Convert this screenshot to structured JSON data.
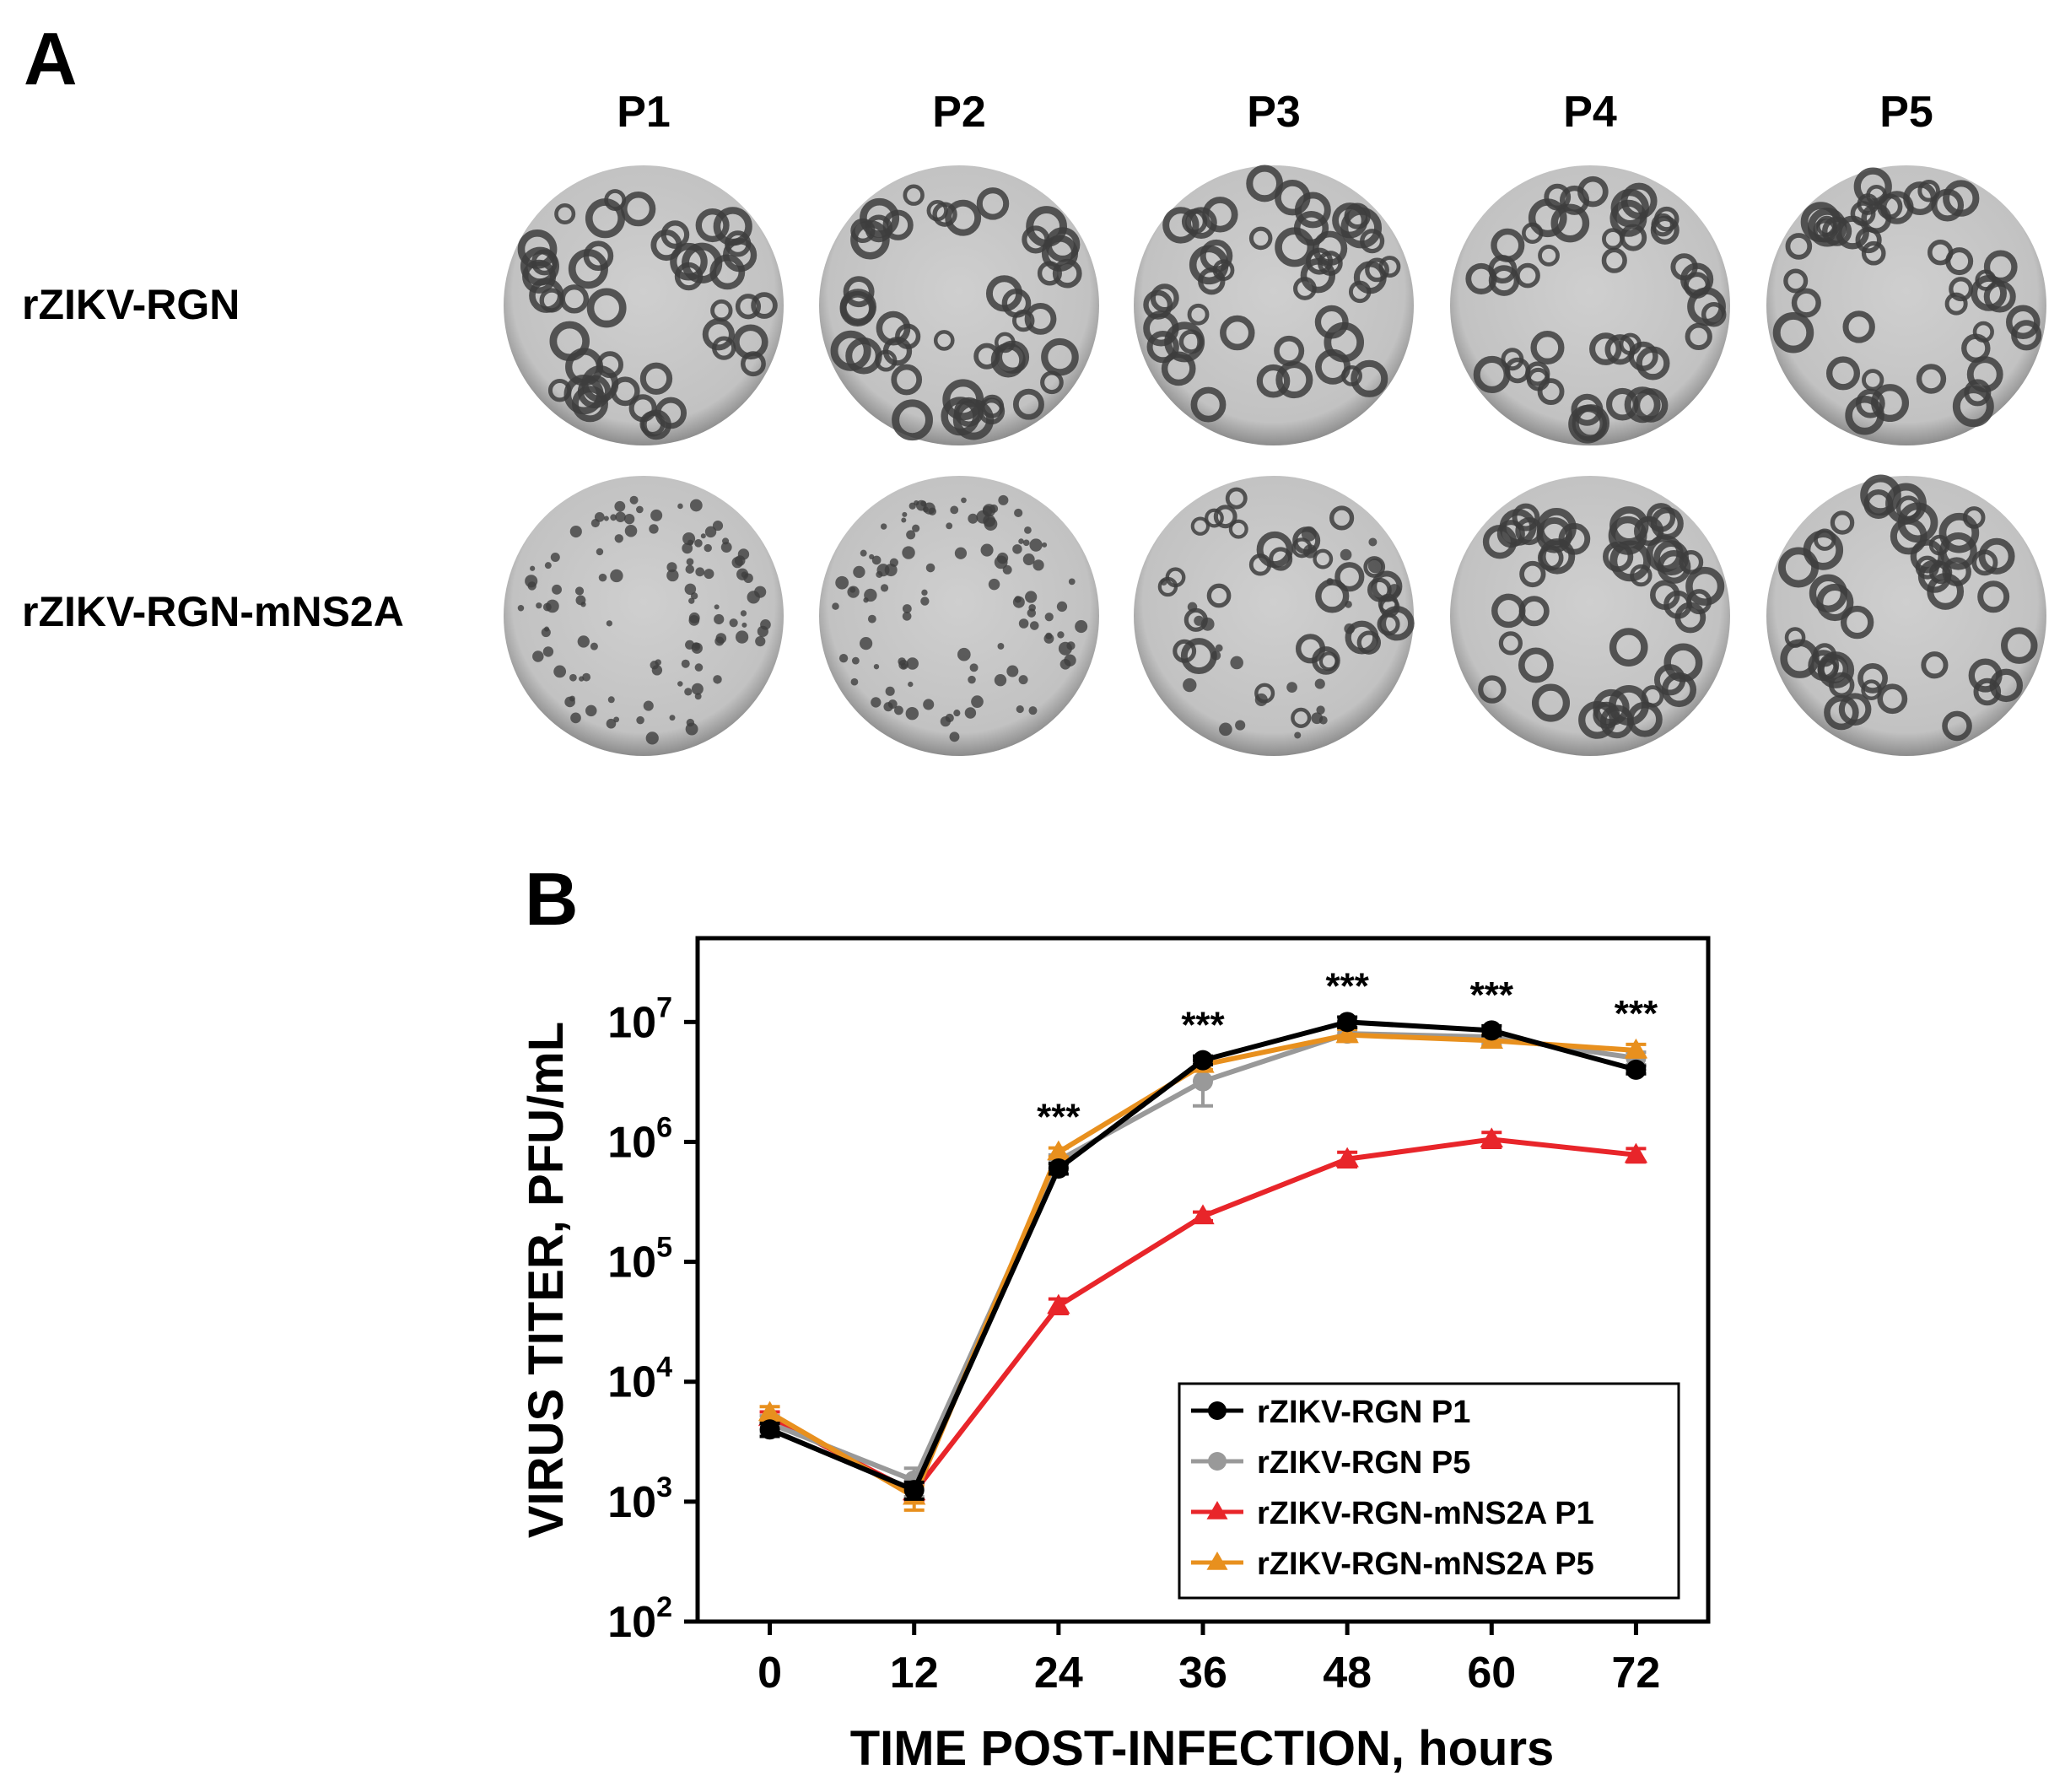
{
  "panel_a": {
    "label": "A",
    "columns": [
      "P1",
      "P2",
      "P3",
      "P4",
      "P5"
    ],
    "rows": [
      {
        "label": "rZIKV-RGN",
        "plaque_type": [
          "large",
          "large",
          "large",
          "large",
          "large"
        ]
      },
      {
        "label": "rZIKV-RGN-mNS2A",
        "plaque_type": [
          "small",
          "small",
          "mixed",
          "large",
          "large"
        ]
      }
    ]
  },
  "panel_b": {
    "label": "B"
  },
  "chart_data": {
    "type": "line",
    "title": "",
    "xlabel": "TIME POST-INFECTION, hours",
    "ylabel": "VIRUS TITER, PFU/mL",
    "y_scale": "log",
    "ylim": [
      100,
      50000000
    ],
    "xlim": [
      -6,
      78
    ],
    "x_ticks": [
      0,
      12,
      24,
      36,
      48,
      60,
      72
    ],
    "y_ticks": [
      {
        "value": 100,
        "base": "10",
        "exp": "2"
      },
      {
        "value": 1000,
        "base": "10",
        "exp": "3"
      },
      {
        "value": 10000,
        "base": "10",
        "exp": "4"
      },
      {
        "value": 100000,
        "base": "10",
        "exp": "5"
      },
      {
        "value": 1000000,
        "base": "10",
        "exp": "6"
      },
      {
        "value": 10000000,
        "base": "10",
        "exp": "7"
      }
    ],
    "grid": false,
    "legend_position": "bottom-right",
    "x": [
      0,
      12,
      24,
      36,
      48,
      60,
      72
    ],
    "series": [
      {
        "name": "rZIKV-RGN P1",
        "color": "#000000",
        "marker": "circle",
        "values": [
          4000,
          1250,
          600000,
          4800000,
          10000000,
          8500000,
          4000000
        ],
        "errors": [
          500,
          200,
          60000,
          400000,
          1000000,
          800000,
          300000
        ]
      },
      {
        "name": "rZIKV-RGN P5",
        "color": "#999999",
        "marker": "circle",
        "values": [
          4500,
          1500,
          700000,
          3200000,
          8000000,
          7500000,
          5000000
        ],
        "errors": [
          700,
          400,
          80000,
          1200000,
          1000000,
          1000000,
          600000
        ]
      },
      {
        "name": "rZIKV-RGN-mNS2A P1",
        "color": "#e8252a",
        "marker": "triangle",
        "values": [
          5000,
          1200,
          43000,
          240000,
          720000,
          1050000,
          780000
        ],
        "errors": [
          600,
          200,
          6000,
          20000,
          100000,
          150000,
          100000
        ]
      },
      {
        "name": "rZIKV-RGN-mNS2A P5",
        "color": "#e8901e",
        "marker": "triangle",
        "values": [
          5500,
          1100,
          820000,
          4400000,
          7800000,
          7000000,
          5800000
        ],
        "errors": [
          700,
          250,
          70000,
          400000,
          900000,
          800000,
          700000
        ]
      }
    ],
    "annotations": [
      {
        "x": 24,
        "text": "***"
      },
      {
        "x": 36,
        "text": "***"
      },
      {
        "x": 48,
        "text": "***"
      },
      {
        "x": 60,
        "text": "***"
      },
      {
        "x": 72,
        "text": "***"
      }
    ]
  }
}
